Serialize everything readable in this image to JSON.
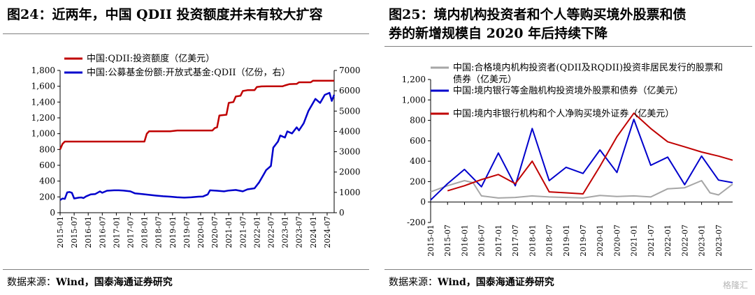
{
  "left": {
    "title": "图24：近两年，中国 QDII 投资额度并未有较大扩容",
    "source_label": "数据来源：",
    "source_text": "Wind，国泰海通证券研究",
    "chart_data": {
      "type": "line",
      "x_start": "2015-01",
      "x_end": "2024-10",
      "x_ticks": [
        "2015-01",
        "2015-07",
        "2016-01",
        "2016-07",
        "2017-01",
        "2017-07",
        "2018-01",
        "2018-07",
        "2019-01",
        "2019-07",
        "2020-01",
        "2020-07",
        "2021-01",
        "2021-07",
        "2022-01",
        "2022-07",
        "2023-01",
        "2023-07",
        "2024-01",
        "2024-07"
      ],
      "y_left": {
        "lim": [
          0,
          1800
        ],
        "ticks": [
          "0",
          "200",
          "400",
          "600",
          "800",
          "1,000",
          "1,200",
          "1,400",
          "1,600",
          "1,800"
        ]
      },
      "y_right": {
        "lim": [
          0,
          7000
        ],
        "ticks": [
          "0",
          "1000",
          "2000",
          "3000",
          "4000",
          "5000",
          "6000",
          "7000"
        ]
      },
      "legend_position": "top-left",
      "grid": false,
      "series": [
        {
          "name": "中国:QDII:投资额度（亿美元）",
          "color": "#c00000",
          "axis": "left",
          "points": [
            [
              "2015-01",
              800
            ],
            [
              "2015-02",
              870
            ],
            [
              "2015-03",
              900
            ],
            [
              "2016-01",
              900
            ],
            [
              "2017-01",
              900
            ],
            [
              "2017-12",
              900
            ],
            [
              "2018-01",
              900
            ],
            [
              "2018-02",
              1000
            ],
            [
              "2018-03",
              1030
            ],
            [
              "2018-06",
              1030
            ],
            [
              "2018-12",
              1030
            ],
            [
              "2019-03",
              1040
            ],
            [
              "2019-12",
              1040
            ],
            [
              "2020-03",
              1040
            ],
            [
              "2020-06",
              1040
            ],
            [
              "2020-07",
              1070
            ],
            [
              "2020-08",
              1080
            ],
            [
              "2020-09",
              1230
            ],
            [
              "2020-12",
              1240
            ],
            [
              "2021-01",
              1390
            ],
            [
              "2021-03",
              1400
            ],
            [
              "2021-04",
              1470
            ],
            [
              "2021-06",
              1480
            ],
            [
              "2021-07",
              1540
            ],
            [
              "2021-09",
              1550
            ],
            [
              "2021-12",
              1550
            ],
            [
              "2022-01",
              1590
            ],
            [
              "2022-03",
              1598
            ],
            [
              "2022-07",
              1600
            ],
            [
              "2022-12",
              1600
            ],
            [
              "2023-01",
              1610
            ],
            [
              "2023-03",
              1627
            ],
            [
              "2023-06",
              1630
            ],
            [
              "2023-07",
              1650
            ],
            [
              "2023-12",
              1650
            ],
            [
              "2024-01",
              1670
            ],
            [
              "2024-04",
              1670
            ],
            [
              "2024-10",
              1670
            ]
          ]
        },
        {
          "name": "中国:公募基金份额:开放式基金:QDII（亿份，右）",
          "color": "#0000cc",
          "axis": "right",
          "points": [
            [
              "2015-01",
              620
            ],
            [
              "2015-02",
              700
            ],
            [
              "2015-03",
              680
            ],
            [
              "2015-04",
              1000
            ],
            [
              "2015-05",
              1020
            ],
            [
              "2015-06",
              980
            ],
            [
              "2015-07",
              700
            ],
            [
              "2015-08",
              720
            ],
            [
              "2015-09",
              740
            ],
            [
              "2015-10",
              750
            ],
            [
              "2015-11",
              720
            ],
            [
              "2015-12",
              800
            ],
            [
              "2016-02",
              900
            ],
            [
              "2016-04",
              920
            ],
            [
              "2016-06",
              1050
            ],
            [
              "2016-07",
              980
            ],
            [
              "2016-09",
              1080
            ],
            [
              "2016-12",
              1100
            ],
            [
              "2017-02",
              1100
            ],
            [
              "2017-04",
              1090
            ],
            [
              "2017-07",
              1050
            ],
            [
              "2017-09",
              950
            ],
            [
              "2017-12",
              920
            ],
            [
              "2018-03",
              880
            ],
            [
              "2018-06",
              840
            ],
            [
              "2018-09",
              810
            ],
            [
              "2018-12",
              790
            ],
            [
              "2019-03",
              760
            ],
            [
              "2019-06",
              740
            ],
            [
              "2019-09",
              760
            ],
            [
              "2019-12",
              790
            ],
            [
              "2020-02",
              800
            ],
            [
              "2020-04",
              900
            ],
            [
              "2020-05",
              1100
            ],
            [
              "2020-08",
              1080
            ],
            [
              "2020-11",
              1050
            ],
            [
              "2021-01",
              1090
            ],
            [
              "2021-04",
              1120
            ],
            [
              "2021-07",
              1050
            ],
            [
              "2021-09",
              1150
            ],
            [
              "2021-12",
              1200
            ],
            [
              "2022-02",
              1500
            ],
            [
              "2022-04",
              1900
            ],
            [
              "2022-05",
              2100
            ],
            [
              "2022-07",
              2300
            ],
            [
              "2022-08",
              3200
            ],
            [
              "2022-10",
              3500
            ],
            [
              "2022-11",
              3800
            ],
            [
              "2023-01",
              3700
            ],
            [
              "2023-02",
              4000
            ],
            [
              "2023-04",
              3900
            ],
            [
              "2023-06",
              4200
            ],
            [
              "2023-07",
              4050
            ],
            [
              "2023-09",
              4400
            ],
            [
              "2023-11",
              5000
            ],
            [
              "2024-01",
              5400
            ],
            [
              "2024-02",
              5600
            ],
            [
              "2024-04",
              5400
            ],
            [
              "2024-06",
              5800
            ],
            [
              "2024-08",
              5900
            ],
            [
              "2024-09",
              5500
            ],
            [
              "2024-10",
              5800
            ]
          ]
        }
      ]
    }
  },
  "right": {
    "title_line1": "图25：境内机构投资者和个人等购买境外股票和债",
    "title_line2": "券的新增规模自 2020 年后持续下降",
    "source_label": "数据来源：",
    "source_text": "Wind，国泰海通证券研究",
    "watermark": "格隆汇",
    "chart_data": {
      "type": "line",
      "x_start": "2015-01",
      "x_end": "2023-12",
      "x_ticks": [
        "2015-01",
        "2015-07",
        "2016-01",
        "2016-07",
        "2017-01",
        "2017-07",
        "2018-01",
        "2018-07",
        "2019-01",
        "2019-07",
        "2020-01",
        "2020-07",
        "2021-01",
        "2021-07",
        "2022-01",
        "2022-07",
        "2023-01",
        "2023-07"
      ],
      "y_left": {
        "lim": [
          -200,
          1200
        ],
        "ticks": [
          "-200",
          "0",
          "200",
          "400",
          "600",
          "800",
          "1,000",
          "1,200"
        ]
      },
      "legend_position": "top",
      "grid": false,
      "series": [
        {
          "name_line1": "中国:合格境内机构投资者(QDII及RQDII)投资非居民发行的股票和",
          "name_line2": "债券（亿美元）",
          "color": "#a6a6a6",
          "points": [
            [
              "2015-01",
              100
            ],
            [
              "2015-07",
              160
            ],
            [
              "2016-01",
              210
            ],
            [
              "2016-04",
              190
            ],
            [
              "2016-07",
              60
            ],
            [
              "2017-01",
              40
            ],
            [
              "2017-07",
              45
            ],
            [
              "2018-01",
              60
            ],
            [
              "2018-07",
              50
            ],
            [
              "2019-01",
              45
            ],
            [
              "2019-07",
              40
            ],
            [
              "2020-01",
              65
            ],
            [
              "2020-07",
              55
            ],
            [
              "2021-01",
              60
            ],
            [
              "2021-07",
              50
            ],
            [
              "2022-01",
              130
            ],
            [
              "2022-07",
              140
            ],
            [
              "2023-01",
              210
            ],
            [
              "2023-04",
              90
            ],
            [
              "2023-07",
              70
            ],
            [
              "2023-12",
              175
            ]
          ]
        },
        {
          "name": "中国:境内银行等金融机构投资境外股票和债券（亿美元）",
          "color": "#0000cc",
          "points": [
            [
              "2015-01",
              20
            ],
            [
              "2015-07",
              180
            ],
            [
              "2016-01",
              320
            ],
            [
              "2016-07",
              150
            ],
            [
              "2017-01",
              480
            ],
            [
              "2017-07",
              160
            ],
            [
              "2018-01",
              720
            ],
            [
              "2018-07",
              210
            ],
            [
              "2019-01",
              340
            ],
            [
              "2019-07",
              280
            ],
            [
              "2020-01",
              510
            ],
            [
              "2020-07",
              290
            ],
            [
              "2021-01",
              810
            ],
            [
              "2021-07",
              360
            ],
            [
              "2022-01",
              440
            ],
            [
              "2022-07",
              170
            ],
            [
              "2023-01",
              450
            ],
            [
              "2023-07",
              215
            ],
            [
              "2023-12",
              190
            ]
          ]
        },
        {
          "name": "中国:境内非银行机构和个人净购买境外证券（亿美元）",
          "color": "#c00000",
          "points": [
            [
              "2015-07",
              110
            ],
            [
              "2016-01",
              160
            ],
            [
              "2016-07",
              220
            ],
            [
              "2017-01",
              270
            ],
            [
              "2017-07",
              180
            ],
            [
              "2018-01",
              400
            ],
            [
              "2018-07",
              100
            ],
            [
              "2019-01",
              90
            ],
            [
              "2019-07",
              80
            ],
            [
              "2020-01",
              350
            ],
            [
              "2020-07",
              640
            ],
            [
              "2021-01",
              870
            ],
            [
              "2021-07",
              720
            ],
            [
              "2022-01",
              590
            ],
            [
              "2022-07",
              540
            ],
            [
              "2023-01",
              490
            ],
            [
              "2023-07",
              450
            ],
            [
              "2023-12",
              410
            ]
          ]
        }
      ]
    }
  }
}
